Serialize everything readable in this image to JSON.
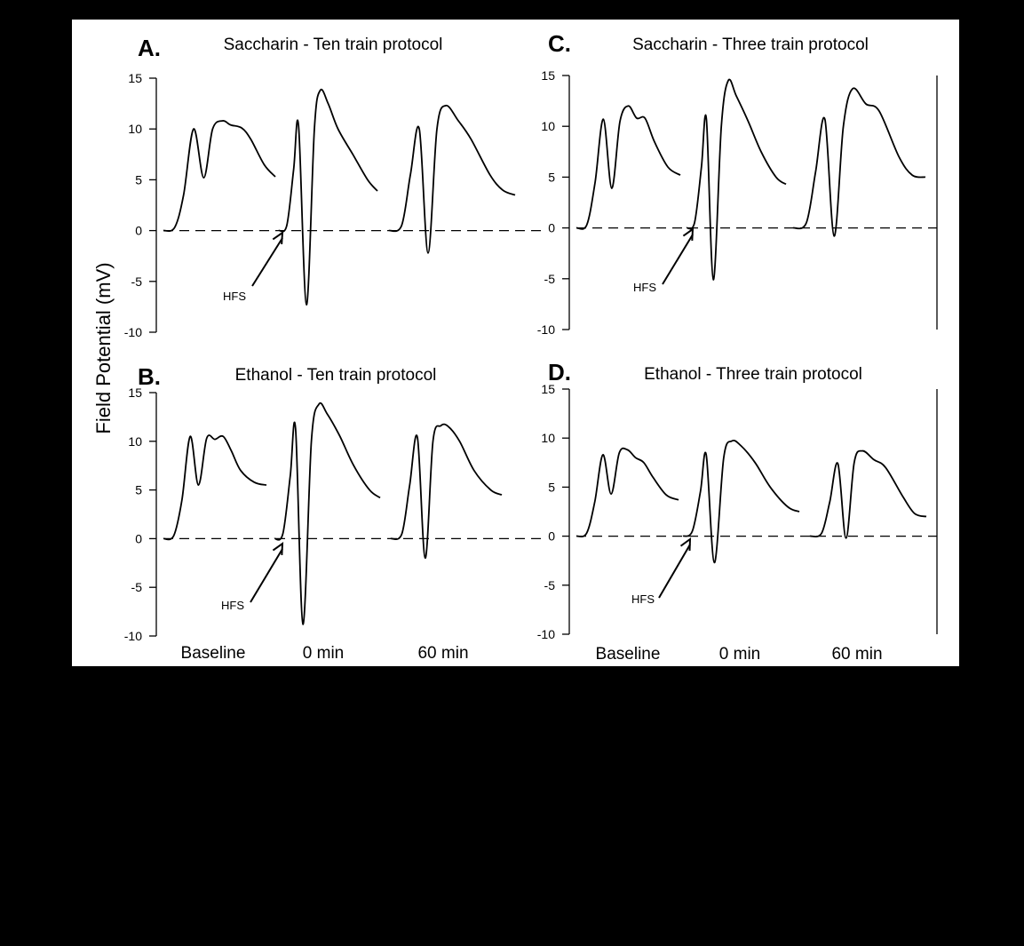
{
  "figure": {
    "ylabel": "Field Potential (mV)",
    "background": "#000000",
    "panel_background": "#ffffff",
    "trace_color": "#000000",
    "condition_labels": [
      "Baseline",
      "0 min",
      "60 min"
    ],
    "arrow_label": "HFS"
  },
  "chart_data": [
    {
      "type": "line",
      "panel": "A.",
      "title": "Saccharin - Ten train protocol",
      "ylim": [
        -10,
        15
      ],
      "yticks": [
        15,
        10,
        5,
        0,
        -5,
        -10
      ],
      "baseline_dashed_at": 0,
      "series": [
        {
          "condition": "Baseline",
          "t": [
            0,
            0.1,
            0.18,
            0.27,
            0.36,
            0.44,
            0.53,
            0.6,
            0.7,
            0.78,
            0.9,
            1.0
          ],
          "v": [
            0,
            0.3,
            3.5,
            10.0,
            5.2,
            10.0,
            10.8,
            10.4,
            10.1,
            9.0,
            6.5,
            5.3
          ]
        },
        {
          "condition": "0 min",
          "t": [
            0,
            0.08,
            0.15,
            0.2,
            0.28,
            0.36,
            0.42,
            0.5,
            0.6,
            0.75,
            0.9,
            1.0
          ],
          "v": [
            0,
            0.5,
            6.0,
            10.3,
            -7.3,
            10.0,
            13.8,
            12.5,
            10.0,
            7.5,
            5.0,
            3.9
          ]
        },
        {
          "condition": "60 min",
          "t": [
            0,
            0.1,
            0.17,
            0.24,
            0.31,
            0.38,
            0.45,
            0.55,
            0.65,
            0.8,
            0.9,
            1.0
          ],
          "v": [
            0,
            0.5,
            5.5,
            10.0,
            -2.2,
            10.0,
            12.3,
            10.8,
            9.0,
            5.5,
            4.0,
            3.5
          ]
        }
      ],
      "hfs_at_condition": "0 min"
    },
    {
      "type": "line",
      "panel": "B.",
      "title": "Ethanol - Ten train protocol",
      "ylim": [
        -10,
        15
      ],
      "yticks": [
        15,
        10,
        5,
        0,
        -5,
        -10
      ],
      "baseline_dashed_at": 0,
      "series": [
        {
          "condition": "Baseline",
          "t": [
            0,
            0.1,
            0.18,
            0.26,
            0.34,
            0.42,
            0.5,
            0.58,
            0.66,
            0.75,
            0.88,
            1.0
          ],
          "v": [
            0,
            0.3,
            4.0,
            10.5,
            5.5,
            10.3,
            10.2,
            10.5,
            9.0,
            7.0,
            5.8,
            5.5
          ]
        },
        {
          "condition": "0 min",
          "t": [
            0,
            0.08,
            0.15,
            0.2,
            0.27,
            0.35,
            0.42,
            0.5,
            0.62,
            0.75,
            0.9,
            1.0
          ],
          "v": [
            0,
            0.5,
            6.5,
            11.3,
            -8.8,
            10.0,
            13.8,
            12.8,
            10.5,
            7.5,
            5.0,
            4.2
          ]
        },
        {
          "condition": "60 min",
          "t": [
            0,
            0.1,
            0.17,
            0.24,
            0.31,
            0.38,
            0.45,
            0.52,
            0.62,
            0.75,
            0.9,
            1.0
          ],
          "v": [
            0,
            0.5,
            5.5,
            10.4,
            -2.0,
            10.0,
            11.6,
            11.5,
            10.0,
            7.0,
            5.0,
            4.5
          ]
        }
      ],
      "hfs_at_condition": "0 min"
    },
    {
      "type": "line",
      "panel": "C.",
      "title": "Saccharin - Three train protocol",
      "ylim": [
        -10,
        15
      ],
      "yticks": [
        15,
        10,
        5,
        0,
        -5,
        -10
      ],
      "baseline_dashed_at": 0,
      "series": [
        {
          "condition": "Baseline",
          "t": [
            0,
            0.1,
            0.18,
            0.26,
            0.34,
            0.42,
            0.5,
            0.58,
            0.66,
            0.75,
            0.88,
            1.0
          ],
          "v": [
            0,
            0.3,
            4.5,
            10.7,
            3.9,
            10.5,
            12.0,
            10.8,
            10.8,
            8.5,
            6.0,
            5.2
          ]
        },
        {
          "condition": "0 min",
          "t": [
            0,
            0.08,
            0.15,
            0.2,
            0.27,
            0.35,
            0.42,
            0.5,
            0.62,
            0.75,
            0.9,
            1.0
          ],
          "v": [
            0,
            0.5,
            6.0,
            10.7,
            -5.1,
            10.0,
            14.5,
            13.0,
            10.5,
            7.5,
            5.0,
            4.3
          ]
        },
        {
          "condition": "60 min",
          "t": [
            0,
            0.1,
            0.17,
            0.24,
            0.31,
            0.38,
            0.45,
            0.55,
            0.65,
            0.8,
            0.9,
            1.0
          ],
          "v": [
            0,
            0.5,
            5.5,
            10.7,
            -0.8,
            10.0,
            13.7,
            12.2,
            11.5,
            7.0,
            5.2,
            5.0
          ]
        }
      ],
      "hfs_at_condition": "0 min"
    },
    {
      "type": "line",
      "panel": "D.",
      "title": "Ethanol - Three train protocol",
      "ylim": [
        -10,
        15
      ],
      "yticks": [
        15,
        10,
        5,
        0,
        -5,
        -10
      ],
      "baseline_dashed_at": 0,
      "series": [
        {
          "condition": "Baseline",
          "t": [
            0,
            0.1,
            0.18,
            0.26,
            0.34,
            0.42,
            0.5,
            0.58,
            0.66,
            0.75,
            0.88,
            1.0
          ],
          "v": [
            0,
            0.3,
            3.5,
            8.3,
            4.3,
            8.5,
            8.8,
            8.0,
            7.5,
            6.0,
            4.2,
            3.7
          ]
        },
        {
          "condition": "0 min",
          "t": [
            0,
            0.08,
            0.15,
            0.2,
            0.27,
            0.35,
            0.42,
            0.5,
            0.62,
            0.75,
            0.9,
            1.0
          ],
          "v": [
            0,
            0.5,
            4.5,
            8.3,
            -2.7,
            8.0,
            9.7,
            9.2,
            7.5,
            5.0,
            3.0,
            2.5
          ]
        },
        {
          "condition": "60 min",
          "t": [
            0,
            0.1,
            0.17,
            0.24,
            0.31,
            0.38,
            0.45,
            0.55,
            0.65,
            0.8,
            0.9,
            1.0
          ],
          "v": [
            0,
            0.3,
            3.5,
            7.4,
            -0.2,
            7.5,
            8.7,
            7.8,
            7.0,
            4.0,
            2.3,
            2.0
          ]
        }
      ],
      "hfs_at_condition": "0 min"
    }
  ]
}
